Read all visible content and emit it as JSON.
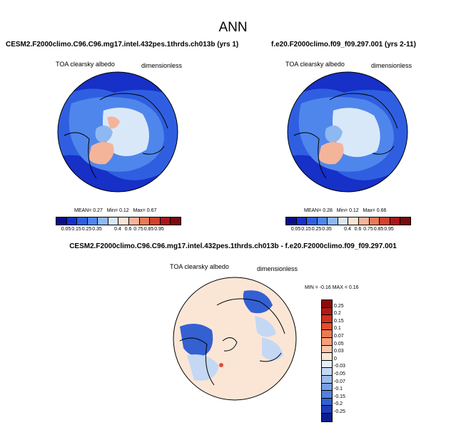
{
  "title": "ANN",
  "panels": [
    {
      "case": "CESM2.F2000climo.C96.C96.mg17.intel.432pes.1thrds.ch013b (yrs 1)",
      "var": "TOA clearsky albedo",
      "units": "dimensionless",
      "stats": {
        "mean_label": "MEAN=",
        "mean": "0.27",
        "min_label": "Min=",
        "min": "0.12",
        "max_label": "Max=",
        "max": "0.67"
      }
    },
    {
      "case": "f.e20.F2000climo.f09_f09.297.001 (yrs 2-11)",
      "var": "TOA clearsky albedo",
      "units": "dimensionless",
      "stats": {
        "mean_label": "MEAN=",
        "mean": "0.28",
        "min_label": "Min=",
        "min": "0.12",
        "max_label": "Max=",
        "max": "0.66"
      }
    }
  ],
  "diff": {
    "title": "CESM2.F2000climo.C96.C96.mg17.intel.432pes.1thrds.ch013b - f.e20.F2000climo.f09_f09.297.001",
    "var": "TOA clearsky albedo",
    "units": "dimensionless",
    "minmax": "MIN = -0.16 MAX = 0.16"
  },
  "colorbar_levels": [
    "0.05",
    "0.15",
    "0.25",
    "0.35",
    "0.4",
    "0.6",
    "0.75",
    "0.85",
    "0.95"
  ],
  "colorbar_colors": [
    "#0a0f8a",
    "#1630c8",
    "#2f5fe0",
    "#4f86ec",
    "#8eb8f2",
    "#d9e8f8",
    "#fbe3d6",
    "#f4b49a",
    "#e87a5a",
    "#d0432e",
    "#a8161a",
    "#7a0a0c"
  ],
  "diff_levels": [
    "0.25",
    "0.2",
    "0.15",
    "0.1",
    "0.07",
    "0.05",
    "0.03",
    "0",
    "-0.03",
    "-0.05",
    "-0.07",
    "-0.1",
    "-0.15",
    "-0.2",
    "-0.25"
  ],
  "diff_colors": [
    "#8c0a0c",
    "#b01a14",
    "#d0321e",
    "#e24f2c",
    "#ee7a50",
    "#f5a07a",
    "#f9c6aa",
    "#fbe6d6",
    "#e6eefa",
    "#c4d8f4",
    "#9cbcee",
    "#789fe6",
    "#5581de",
    "#3460d2",
    "#1e3cb8",
    "#0c1c90"
  ],
  "map_layers": {
    "base_albedo": "#2f5fe0",
    "ocean_deep": "#1630c8",
    "land_mid": "#4f86ec",
    "ice_light": "#d9e8f8",
    "ice_mid": "#8eb8f2",
    "greenland": "#f4b49a",
    "diff_base": "#fbe6d6",
    "diff_neg": "#c4d8f4",
    "diff_neg_strong": "#3460d2",
    "diff_pos": "#e24f2c"
  }
}
